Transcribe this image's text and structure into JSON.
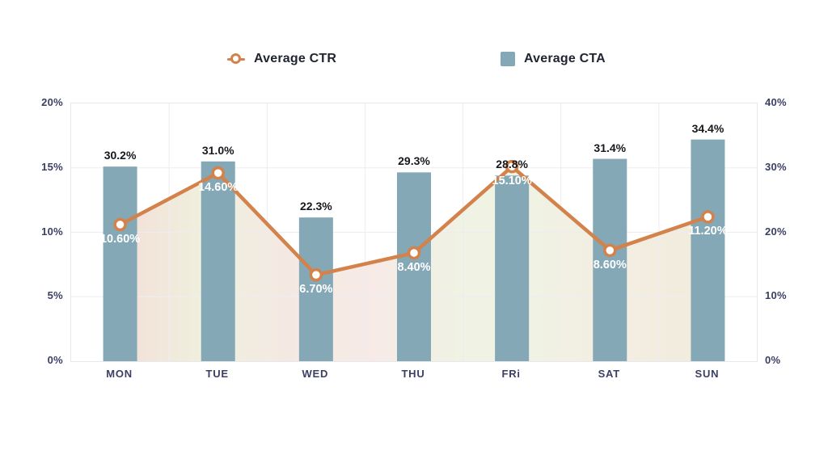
{
  "legend": {
    "ctr_label": "Average CTR",
    "cta_label": "Average CTA"
  },
  "axes": {
    "left_ticks": [
      "20%",
      "15%",
      "10%",
      "5%",
      "0%"
    ],
    "right_ticks": [
      "40%",
      "30%",
      "20%",
      "10%",
      "0%"
    ],
    "left_max": 20,
    "right_max": 40
  },
  "chart_data": {
    "type": "bar",
    "subtype": "combo-bar-line",
    "categories": [
      "MON",
      "TUE",
      "WED",
      "THU",
      "FRi",
      "SAT",
      "SUN"
    ],
    "series": [
      {
        "name": "Average CTR",
        "type": "line",
        "axis": "left",
        "values": [
          10.6,
          14.6,
          6.7,
          8.4,
          15.1,
          8.6,
          11.2
        ],
        "labels": [
          "10.60%",
          "14.60%",
          "6.70%",
          "8.40%",
          "15.10%",
          "8.60%",
          "11.20%"
        ]
      },
      {
        "name": "Average CTA",
        "type": "bar",
        "axis": "right",
        "values": [
          30.2,
          31.0,
          22.3,
          29.3,
          28.8,
          31.4,
          34.4
        ],
        "labels": [
          "30.2%",
          "31.0%",
          "22.3%",
          "29.3%",
          "28.8%",
          "31.4%",
          "34.4%"
        ]
      }
    ],
    "title": "",
    "xlabel": "",
    "ylabel_left": "",
    "ylabel_right": "",
    "left_axis_range": [
      0,
      20
    ],
    "right_axis_range": [
      0,
      40
    ],
    "grid": true,
    "legend_position": "top"
  },
  "colors": {
    "bar": "#84a8b5",
    "line": "#d2824a",
    "marker_fill": "#ffffff",
    "gridline": "#ededf1",
    "plot_border": "#e7e7ee",
    "axis_text": "#3a3f63",
    "bar_label_text": "#17181d",
    "point_label_text": "#ffffff",
    "legend_text": "#1f2430",
    "area_gradient": [
      "#f2dcd4",
      "#edeeda",
      "#f3e6df",
      "#f6e8e4",
      "#eef0e0",
      "#eef0e0",
      "#f2ebdf",
      "#f0ead8"
    ]
  }
}
